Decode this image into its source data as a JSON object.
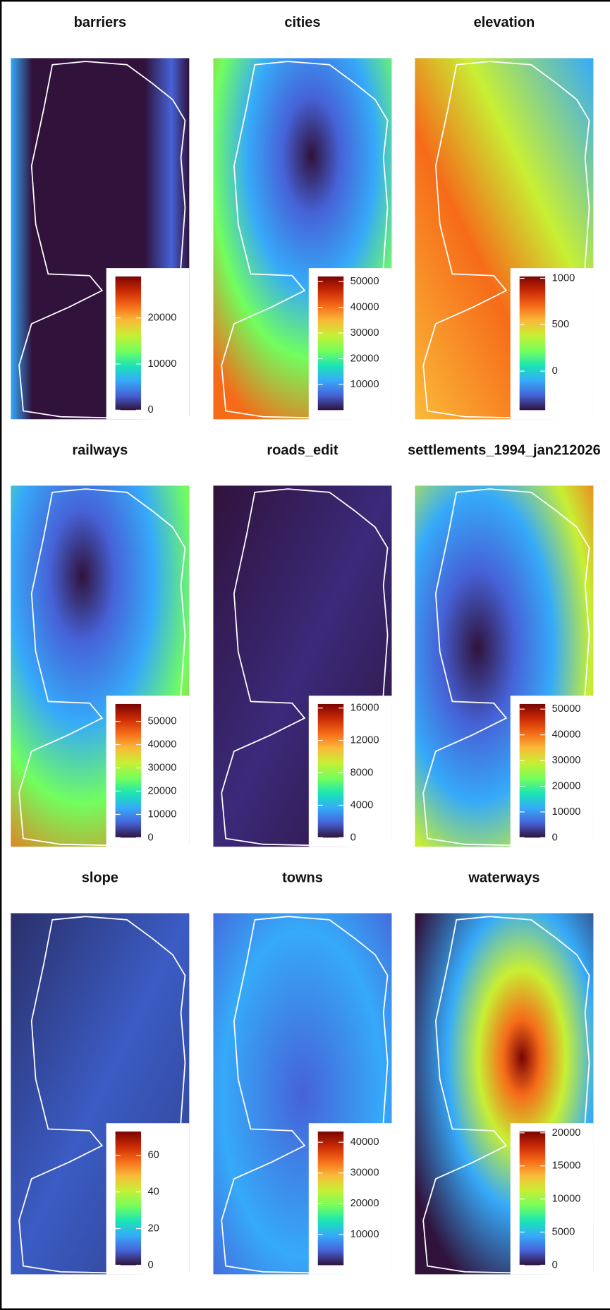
{
  "panels": [
    {
      "title": "barriers",
      "colorbar": {
        "lim": [
          0,
          29000
        ],
        "ticks": [
          0,
          10000,
          20000
        ]
      }
    },
    {
      "title": "cities",
      "colorbar": {
        "lim": [
          0,
          52000
        ],
        "ticks": [
          10000,
          20000,
          30000,
          40000,
          50000
        ]
      }
    },
    {
      "title": "elevation",
      "colorbar": {
        "lim": [
          -420,
          1020
        ],
        "ticks": [
          0,
          500,
          1000
        ]
      }
    },
    {
      "title": "railways",
      "colorbar": {
        "lim": [
          0,
          57500
        ],
        "ticks": [
          0,
          10000,
          20000,
          30000,
          40000,
          50000
        ]
      }
    },
    {
      "title": "roads_edit",
      "colorbar": {
        "lim": [
          0,
          16500
        ],
        "ticks": [
          0,
          4000,
          8000,
          12000,
          16000
        ]
      }
    },
    {
      "title": "settlements_1994_jan212026",
      "colorbar": {
        "lim": [
          0,
          52000
        ],
        "ticks": [
          0,
          10000,
          20000,
          30000,
          40000,
          50000
        ]
      }
    },
    {
      "title": "slope",
      "colorbar": {
        "lim": [
          0,
          73
        ],
        "ticks": [
          0,
          20,
          40,
          60
        ]
      }
    },
    {
      "title": "towns",
      "colorbar": {
        "lim": [
          0,
          43500
        ],
        "ticks": [
          10000,
          20000,
          30000,
          40000
        ]
      }
    },
    {
      "title": "waterways",
      "colorbar": {
        "lim": [
          0,
          20200
        ],
        "ticks": [
          0,
          5000,
          10000,
          15000,
          20000
        ]
      }
    }
  ]
}
